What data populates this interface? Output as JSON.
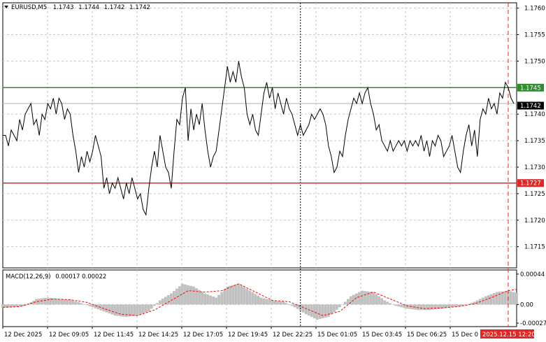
{
  "chart_data": {
    "type": "line",
    "symbol": "EURUSD,M5",
    "ohlc": [
      "1.1743",
      "1.1744",
      "1.1742",
      "1.1742"
    ],
    "colors": {
      "price_line": "#000000",
      "resistance": "#2e8b2e",
      "support": "#e32626",
      "grid": "#c8c8c8",
      "histogram": "#c0c0c0",
      "signal": "#ff0000",
      "last_price_bg": "#000000",
      "time_marker": "#e32626"
    },
    "price_axis": {
      "min": 1.1711,
      "max": 1.1761,
      "ticks": [
        "1.1760",
        "1.1755",
        "1.1750",
        "1.1740",
        "1.1735",
        "1.1730",
        "1.1725",
        "1.1720",
        "1.1715"
      ]
    },
    "levels": {
      "resistance": {
        "value": 1.1745,
        "label": "1.1745"
      },
      "support": {
        "value": 1.1727,
        "label": "1.1727"
      },
      "last_price": {
        "value": 1.1742,
        "label": "1.1742"
      }
    },
    "x_ticks": [
      "12 Dec 2025",
      "12 Dec 09:05",
      "12 Dec 11:45",
      "12 Dec 14:25",
      "12 Dec 17:05",
      "12 Dec 19:45",
      "12 Dec 22:25",
      "15 Dec 01:05",
      "15 Dec 03:45",
      "15 Dec 06:25",
      "15 Dec 0"
    ],
    "current_time_label": "2025.12.15 12:20",
    "crosshair_bar": 106,
    "current_bar": 180,
    "bars_total": 184,
    "price_points": [
      [
        0,
        1.1736
      ],
      [
        1,
        1.1736
      ],
      [
        2,
        1.1734
      ],
      [
        3,
        1.1737
      ],
      [
        4,
        1.1736
      ],
      [
        5,
        1.1735
      ],
      [
        6,
        1.1739
      ],
      [
        7,
        1.1737
      ],
      [
        8,
        1.174
      ],
      [
        9,
        1.1741
      ],
      [
        10,
        1.1742
      ],
      [
        11,
        1.1738
      ],
      [
        12,
        1.1739
      ],
      [
        13,
        1.1736
      ],
      [
        14,
        1.174
      ],
      [
        15,
        1.1739
      ],
      [
        16,
        1.1742
      ],
      [
        17,
        1.1741
      ],
      [
        18,
        1.1743
      ],
      [
        19,
        1.174
      ],
      [
        20,
        1.1743
      ],
      [
        21,
        1.1742
      ],
      [
        22,
        1.1739
      ],
      [
        23,
        1.1741
      ],
      [
        24,
        1.174
      ],
      [
        25,
        1.1736
      ],
      [
        26,
        1.1733
      ],
      [
        27,
        1.1729
      ],
      [
        28,
        1.1732
      ],
      [
        29,
        1.173
      ],
      [
        30,
        1.1733
      ],
      [
        31,
        1.1731
      ],
      [
        32,
        1.1733
      ],
      [
        33,
        1.1736
      ],
      [
        34,
        1.1734
      ],
      [
        35,
        1.1732
      ],
      [
        36,
        1.1726
      ],
      [
        37,
        1.1728
      ],
      [
        38,
        1.1725
      ],
      [
        39,
        1.1727
      ],
      [
        40,
        1.1726
      ],
      [
        41,
        1.1728
      ],
      [
        42,
        1.1726
      ],
      [
        43,
        1.1724
      ],
      [
        44,
        1.1727
      ],
      [
        45,
        1.1725
      ],
      [
        46,
        1.1728
      ],
      [
        47,
        1.1726
      ],
      [
        48,
        1.1724
      ],
      [
        49,
        1.1725
      ],
      [
        50,
        1.1722
      ],
      [
        51,
        1.1721
      ],
      [
        52,
        1.1726
      ],
      [
        53,
        1.173
      ],
      [
        54,
        1.1733
      ],
      [
        55,
        1.173
      ],
      [
        56,
        1.1736
      ],
      [
        57,
        1.1733
      ],
      [
        58,
        1.173
      ],
      [
        59,
        1.1729
      ],
      [
        60,
        1.1726
      ],
      [
        61,
        1.1733
      ],
      [
        62,
        1.1739
      ],
      [
        63,
        1.1738
      ],
      [
        64,
        1.1743
      ],
      [
        65,
        1.1745
      ],
      [
        66,
        1.1735
      ],
      [
        67,
        1.1741
      ],
      [
        68,
        1.1737
      ],
      [
        69,
        1.174
      ],
      [
        70,
        1.1738
      ],
      [
        71,
        1.1742
      ],
      [
        72,
        1.1737
      ],
      [
        73,
        1.1733
      ],
      [
        74,
        1.173
      ],
      [
        75,
        1.1732
      ],
      [
        76,
        1.1733
      ],
      [
        77,
        1.1737
      ],
      [
        78,
        1.1741
      ],
      [
        79,
        1.1745
      ],
      [
        80,
        1.1749
      ],
      [
        81,
        1.1746
      ],
      [
        82,
        1.1748
      ],
      [
        83,
        1.1746
      ],
      [
        84,
        1.175
      ],
      [
        85,
        1.1747
      ],
      [
        86,
        1.1745
      ],
      [
        87,
        1.174
      ],
      [
        88,
        1.1738
      ],
      [
        89,
        1.174
      ],
      [
        90,
        1.1737
      ],
      [
        91,
        1.1736
      ],
      [
        92,
        1.174
      ],
      [
        93,
        1.1744
      ],
      [
        94,
        1.1746
      ],
      [
        95,
        1.1743
      ],
      [
        96,
        1.1745
      ],
      [
        97,
        1.1741
      ],
      [
        98,
        1.1744
      ],
      [
        99,
        1.1742
      ],
      [
        100,
        1.174
      ],
      [
        101,
        1.1743
      ],
      [
        102,
        1.1741
      ],
      [
        103,
        1.174
      ],
      [
        104,
        1.1738
      ],
      [
        105,
        1.1736
      ],
      [
        106,
        1.1738
      ],
      [
        107,
        1.1736
      ],
      [
        108,
        1.1737
      ],
      [
        109,
        1.1738
      ],
      [
        110,
        1.174
      ],
      [
        111,
        1.1739
      ],
      [
        112,
        1.174
      ],
      [
        113,
        1.1741
      ],
      [
        114,
        1.174
      ],
      [
        115,
        1.1738
      ],
      [
        116,
        1.1734
      ],
      [
        117,
        1.1732
      ],
      [
        118,
        1.1729
      ],
      [
        119,
        1.173
      ],
      [
        120,
        1.1733
      ],
      [
        121,
        1.1732
      ],
      [
        122,
        1.1736
      ],
      [
        123,
        1.1739
      ],
      [
        124,
        1.1741
      ],
      [
        125,
        1.1743
      ],
      [
        126,
        1.1742
      ],
      [
        127,
        1.1744
      ],
      [
        128,
        1.1742
      ],
      [
        129,
        1.1744
      ],
      [
        130,
        1.1745
      ],
      [
        131,
        1.1742
      ],
      [
        132,
        1.174
      ],
      [
        133,
        1.1737
      ],
      [
        134,
        1.1738
      ],
      [
        135,
        1.1735
      ],
      [
        136,
        1.1734
      ],
      [
        137,
        1.1733
      ],
      [
        138,
        1.1735
      ],
      [
        139,
        1.1733
      ],
      [
        140,
        1.1734
      ],
      [
        141,
        1.1735
      ],
      [
        142,
        1.1734
      ],
      [
        143,
        1.1735
      ],
      [
        144,
        1.1733
      ],
      [
        145,
        1.1735
      ],
      [
        146,
        1.1734
      ],
      [
        147,
        1.1735
      ],
      [
        148,
        1.1734
      ],
      [
        149,
        1.1736
      ],
      [
        150,
        1.1733
      ],
      [
        151,
        1.1735
      ],
      [
        152,
        1.1732
      ],
      [
        153,
        1.1735
      ],
      [
        154,
        1.1734
      ],
      [
        155,
        1.1736
      ],
      [
        156,
        1.1735
      ],
      [
        157,
        1.1732
      ],
      [
        158,
        1.1733
      ],
      [
        159,
        1.1734
      ],
      [
        160,
        1.1736
      ],
      [
        161,
        1.1733
      ],
      [
        162,
        1.173
      ],
      [
        163,
        1.1729
      ],
      [
        164,
        1.1733
      ],
      [
        165,
        1.1736
      ],
      [
        166,
        1.1738
      ],
      [
        167,
        1.1734
      ],
      [
        168,
        1.1737
      ],
      [
        169,
        1.1732
      ],
      [
        170,
        1.1739
      ],
      [
        171,
        1.1741
      ],
      [
        172,
        1.174
      ],
      [
        173,
        1.1743
      ],
      [
        174,
        1.1741
      ],
      [
        175,
        1.1742
      ],
      [
        176,
        1.174
      ],
      [
        177,
        1.1744
      ],
      [
        178,
        1.1743
      ],
      [
        179,
        1.1746
      ],
      [
        180,
        1.1745
      ],
      [
        181,
        1.1743
      ],
      [
        182,
        1.1742
      ]
    ],
    "macd": {
      "title": "MACD(12,26,9)",
      "values_text": "0.00017 0.00022",
      "min": -0.00032,
      "max": 0.0005,
      "ticks": [
        "0.00044",
        "0.00",
        "-0.00027"
      ],
      "histogram": [
        [
          0,
          -5e-05
        ],
        [
          4,
          -4e-05
        ],
        [
          8,
          -2e-05
        ],
        [
          12,
          8e-05
        ],
        [
          16,
          0.0001
        ],
        [
          20,
          8e-05
        ],
        [
          24,
          7e-05
        ],
        [
          28,
          2e-05
        ],
        [
          32,
          -4e-05
        ],
        [
          36,
          -0.0001
        ],
        [
          40,
          -0.00016
        ],
        [
          44,
          -0.00018
        ],
        [
          48,
          -0.00016
        ],
        [
          52,
          -0.0001
        ],
        [
          56,
          6e-05
        ],
        [
          60,
          0.00016
        ],
        [
          64,
          0.0003
        ],
        [
          68,
          0.00026
        ],
        [
          72,
          0.00016
        ],
        [
          76,
          0.0001
        ],
        [
          80,
          0.00026
        ],
        [
          84,
          0.0003
        ],
        [
          88,
          0.0002
        ],
        [
          92,
          0.0001
        ],
        [
          96,
          6e-05
        ],
        [
          100,
          4e-05
        ],
        [
          104,
          -4e-05
        ],
        [
          108,
          -0.00014
        ],
        [
          112,
          -0.00022
        ],
        [
          116,
          -0.00018
        ],
        [
          120,
          -4e-05
        ],
        [
          124,
          0.00012
        ],
        [
          128,
          0.0002
        ],
        [
          132,
          0.00018
        ],
        [
          136,
          6e-05
        ],
        [
          140,
          -2e-05
        ],
        [
          144,
          -6e-05
        ],
        [
          148,
          -8e-05
        ],
        [
          152,
          -8e-05
        ],
        [
          156,
          -6e-05
        ],
        [
          160,
          -4e-05
        ],
        [
          164,
          -2e-05
        ],
        [
          168,
          4e-05
        ],
        [
          172,
          0.00012
        ],
        [
          176,
          0.00018
        ],
        [
          180,
          0.0002
        ],
        [
          183,
          0.00017
        ]
      ],
      "signal": [
        [
          0,
          -4e-05
        ],
        [
          6,
          -3e-05
        ],
        [
          12,
          4e-05
        ],
        [
          18,
          8e-05
        ],
        [
          24,
          7e-05
        ],
        [
          30,
          3e-05
        ],
        [
          36,
          -6e-05
        ],
        [
          42,
          -0.00014
        ],
        [
          48,
          -0.00016
        ],
        [
          54,
          -8e-05
        ],
        [
          60,
          6e-05
        ],
        [
          66,
          0.0002
        ],
        [
          72,
          0.00018
        ],
        [
          78,
          0.0002
        ],
        [
          84,
          0.0003
        ],
        [
          90,
          0.00018
        ],
        [
          96,
          6e-05
        ],
        [
          102,
          4e-05
        ],
        [
          108,
          -6e-05
        ],
        [
          114,
          -0.00016
        ],
        [
          120,
          -0.0001
        ],
        [
          126,
          0.0001
        ],
        [
          132,
          0.00018
        ],
        [
          138,
          8e-05
        ],
        [
          144,
          -2e-05
        ],
        [
          150,
          -6e-05
        ],
        [
          156,
          -5e-05
        ],
        [
          162,
          -3e-05
        ],
        [
          168,
          1e-05
        ],
        [
          174,
          0.0001
        ],
        [
          180,
          0.0002
        ],
        [
          183,
          0.00022
        ]
      ]
    }
  }
}
